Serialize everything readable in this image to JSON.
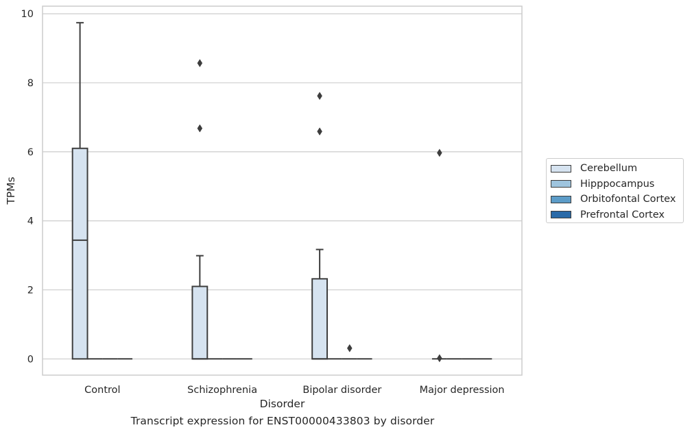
{
  "caption": "Transcript expression for ENST00000433803 by disorder",
  "chart_data": {
    "type": "box",
    "xlabel": "Disorder",
    "ylabel": "TPMs",
    "ylim": [
      -0.47,
      10.22
    ],
    "yticks": [
      0,
      2,
      4,
      6,
      8,
      10
    ],
    "grid": "horizontal",
    "legend_position": "right",
    "categories": [
      "Control",
      "Schizophrenia",
      "Bipolar disorder",
      "Major depression"
    ],
    "series": [
      {
        "name": "Cerebellum",
        "color": "#d6e3f0",
        "boxes": [
          {
            "category": "Control",
            "whisker_low": 0,
            "q1": 0,
            "median": 3.44,
            "q3": 6.1,
            "whisker_high": 9.74,
            "outliers": []
          },
          {
            "category": "Schizophrenia",
            "whisker_low": 0,
            "q1": 0,
            "median": 0,
            "q3": 2.1,
            "whisker_high": 2.99,
            "outliers": [
              6.68,
              8.57
            ]
          },
          {
            "category": "Bipolar disorder",
            "whisker_low": 0,
            "q1": 0,
            "median": 0,
            "q3": 2.32,
            "whisker_high": 3.17,
            "outliers": [
              6.59,
              7.62
            ]
          },
          {
            "category": "Major depression",
            "whisker_low": 0,
            "q1": 0,
            "median": 0,
            "q3": 0,
            "whisker_high": 0,
            "outliers": [
              0.02,
              5.97
            ]
          }
        ]
      },
      {
        "name": "Hipppocampus",
        "color": "#9ec4de",
        "boxes": [
          {
            "category": "Control",
            "whisker_low": 0,
            "q1": 0,
            "median": 0,
            "q3": 0,
            "whisker_high": 0,
            "outliers": []
          },
          {
            "category": "Schizophrenia",
            "whisker_low": 0,
            "q1": 0,
            "median": 0,
            "q3": 0,
            "whisker_high": 0,
            "outliers": []
          },
          {
            "category": "Bipolar disorder",
            "whisker_low": 0,
            "q1": 0,
            "median": 0,
            "q3": 0,
            "whisker_high": 0,
            "outliers": []
          },
          {
            "category": "Major depression",
            "whisker_low": 0,
            "q1": 0,
            "median": 0,
            "q3": 0,
            "whisker_high": 0,
            "outliers": []
          }
        ]
      },
      {
        "name": "Orbitofontal Cortex",
        "color": "#5c9cc8",
        "boxes": [
          {
            "category": "Control",
            "whisker_low": 0,
            "q1": 0,
            "median": 0,
            "q3": 0,
            "whisker_high": 0,
            "outliers": []
          },
          {
            "category": "Schizophrenia",
            "whisker_low": 0,
            "q1": 0,
            "median": 0,
            "q3": 0,
            "whisker_high": 0,
            "outliers": []
          },
          {
            "category": "Bipolar disorder",
            "whisker_low": 0,
            "q1": 0,
            "median": 0,
            "q3": 0,
            "whisker_high": 0,
            "outliers": [
              0.31
            ]
          },
          {
            "category": "Major depression",
            "whisker_low": 0,
            "q1": 0,
            "median": 0,
            "q3": 0,
            "whisker_high": 0,
            "outliers": []
          }
        ]
      },
      {
        "name": "Prefrontal Cortex",
        "color": "#2a6aa8",
        "boxes": [
          {
            "category": "Control",
            "whisker_low": 0,
            "q1": 0,
            "median": 0,
            "q3": 0,
            "whisker_high": 0,
            "outliers": []
          },
          {
            "category": "Schizophrenia",
            "whisker_low": 0,
            "q1": 0,
            "median": 0,
            "q3": 0,
            "whisker_high": 0,
            "outliers": []
          },
          {
            "category": "Bipolar disorder",
            "whisker_low": 0,
            "q1": 0,
            "median": 0,
            "q3": 0,
            "whisker_high": 0,
            "outliers": []
          },
          {
            "category": "Major depression",
            "whisker_low": 0,
            "q1": 0,
            "median": 0,
            "q3": 0,
            "whisker_high": 0,
            "outliers": []
          }
        ]
      }
    ]
  }
}
